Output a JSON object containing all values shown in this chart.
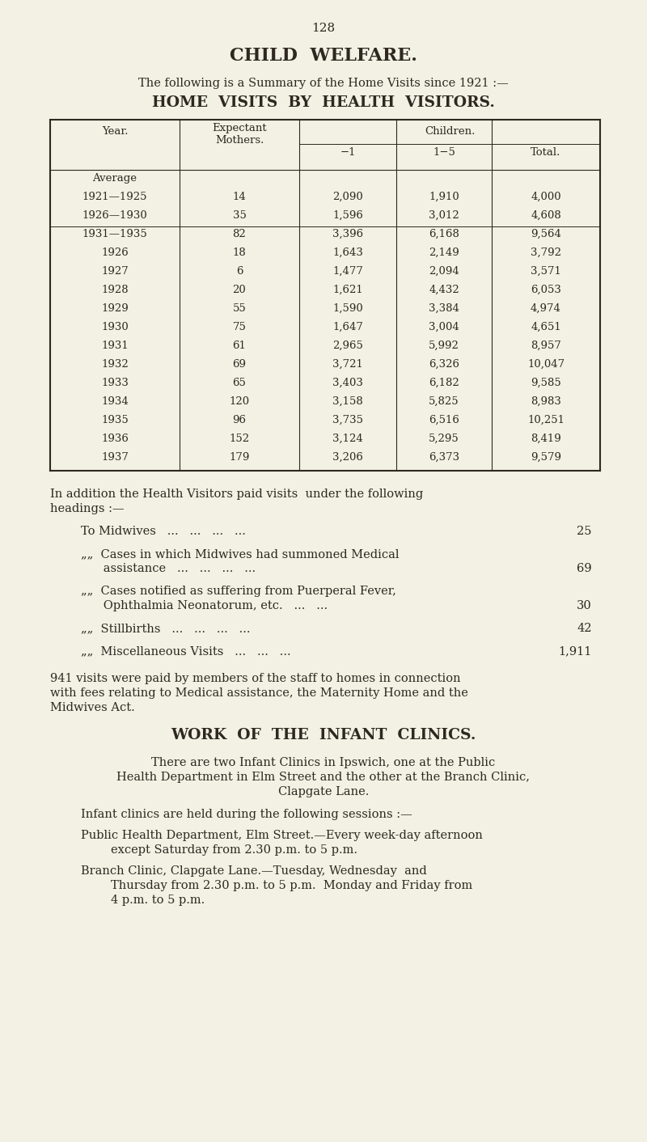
{
  "bg_color": "#f2f1e4",
  "text_color": "#2e2820",
  "page_number": "128",
  "main_title": "CHILD  WELFARE.",
  "subtitle": "The following is a Summary of the Home Visits since 1921 :—",
  "table_title": "HOME  VISITS  BY  HEALTH  VISITORS.",
  "table_rows": [
    [
      "Average",
      "",
      "",
      "",
      ""
    ],
    [
      "1921—1925",
      "14",
      "2,090",
      "1,910",
      "4,000"
    ],
    [
      "1926—1930",
      "35",
      "1,596",
      "3,012",
      "4,608"
    ],
    [
      "1931—1935",
      "82",
      "3,396",
      "6,168",
      "9,564"
    ],
    [
      "1926",
      "18",
      "1,643",
      "2,149",
      "3,792"
    ],
    [
      "1927",
      "6",
      "1,477",
      "2,094",
      "3,571"
    ],
    [
      "1928",
      "20",
      "1,621",
      "4,432",
      "6,053"
    ],
    [
      "1929",
      "55",
      "1,590",
      "3,384",
      "4,974"
    ],
    [
      "1930",
      "75",
      "1,647",
      "3,004",
      "4,651"
    ],
    [
      "1931",
      "61",
      "2,965",
      "5,992",
      "8,957"
    ],
    [
      "1932",
      "69",
      "3,721",
      "6,326",
      "10,047"
    ],
    [
      "1933",
      "65",
      "3,403",
      "6,182",
      "9,585"
    ],
    [
      "1934",
      "120",
      "3,158",
      "5,825",
      "8,983"
    ],
    [
      "1935",
      "96",
      "3,735",
      "6,516",
      "10,251"
    ],
    [
      "1936",
      "152",
      "3,124",
      "5,295",
      "8,419"
    ],
    [
      "1937",
      "179",
      "3,206",
      "6,373",
      "9,579"
    ]
  ],
  "addition_intro_line1": "In addition the Health Visitors paid visits  under the following",
  "addition_intro_line2": "headings :—",
  "item1_text": "To Midwives   ...   ...   ...   ...",
  "item1_num": "25",
  "item2_text1": "„„  Cases in which Midwives had summoned Medical",
  "item2_text2": "      assistance   ...   ...   ...   ...",
  "item2_num": "69",
  "item3_text1": "„„  Cases notified as suffering from Puerperal Fever,",
  "item3_text2": "      Ophthalmia Neonatorum, etc.   ...   ...",
  "item3_num": "30",
  "item4_text": "„„  Stillbirths   ...   ...   ...   ...",
  "item4_num": "42",
  "item5_text": "„„  Miscellaneous Visits   ...   ...   ...",
  "item5_num": "1,911",
  "visits_line1": "941 visits were paid by members of the staff to homes in connection",
  "visits_line2": "with fees relating to Medical assistance, the Maternity Home and the",
  "visits_line3": "Midwives Act.",
  "infant_title": "WORK  OF  THE  INFANT  CLINICS.",
  "infant_line1": "There are two Infant Clinics in Ipswich, one at the Public",
  "infant_line2": "Health Department in Elm Street and the other at the Branch Clinic,",
  "infant_line3": "Clapgate Lane.",
  "sessions_intro": "Infant clinics are held during the following sessions :—",
  "pub_line1": "Public Health Department, Elm Street.—Every week-day afternoon",
  "pub_line2": "        except Saturday from 2.30 p.m. to 5 p.m.",
  "branch_line1": "Branch Clinic, Clapgate Lane.—Tuesday, Wednesday  and",
  "branch_line2": "        Thursday from 2.30 p.m. to 5 p.m.  Monday and Friday from",
  "branch_line3": "        4 p.m. to 5 p.m."
}
